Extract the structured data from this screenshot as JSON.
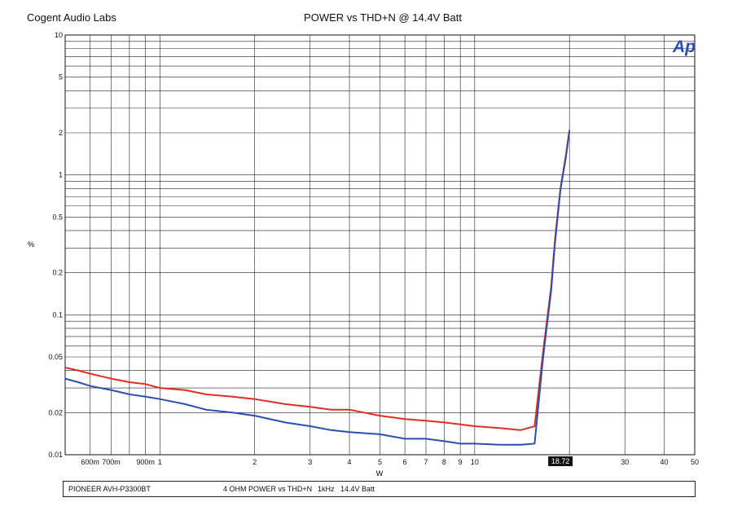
{
  "header": {
    "company": "Cogent Audio Labs",
    "title": "POWER vs THD+N @ 14.4V Batt"
  },
  "logo": {
    "text": "Ap",
    "color": "#2a4fb0"
  },
  "footer": {
    "device": "PIONEER AVH-P3300BT",
    "test": "4 OHM  POWER vs THD+N",
    "freq": "1kHz",
    "supply": "14.4V Batt"
  },
  "chart_data": {
    "type": "line",
    "xlabel": "W",
    "ylabel": "%",
    "xscale": "log",
    "yscale": "log",
    "xlim": [
      0.5,
      50
    ],
    "ylim": [
      0.01,
      10
    ],
    "grid": true,
    "marker": {
      "label": "18.72",
      "x": 18.72
    },
    "x_ticks": [
      {
        "v": 0.6,
        "label": "600m"
      },
      {
        "v": 0.7,
        "label": "700m"
      },
      {
        "v": 0.9,
        "label": "900m"
      },
      {
        "v": 1,
        "label": "1"
      },
      {
        "v": 2,
        "label": "2"
      },
      {
        "v": 3,
        "label": "3"
      },
      {
        "v": 4,
        "label": "4"
      },
      {
        "v": 5,
        "label": "5"
      },
      {
        "v": 6,
        "label": "6"
      },
      {
        "v": 7,
        "label": "7"
      },
      {
        "v": 8,
        "label": "8"
      },
      {
        "v": 9,
        "label": "9"
      },
      {
        "v": 10,
        "label": "10"
      },
      {
        "v": 30,
        "label": "30"
      },
      {
        "v": 40,
        "label": "40"
      },
      {
        "v": 50,
        "label": "50"
      }
    ],
    "y_ticks": [
      {
        "v": 10,
        "label": "10"
      },
      {
        "v": 5,
        "label": "5"
      },
      {
        "v": 2,
        "label": "2"
      },
      {
        "v": 1,
        "label": "1"
      },
      {
        "v": 0.5,
        "label": "0.5"
      },
      {
        "v": 0.2,
        "label": "0.2"
      },
      {
        "v": 0.1,
        "label": "0.1"
      },
      {
        "v": 0.05,
        "label": "0.05"
      },
      {
        "v": 0.02,
        "label": "0.02"
      },
      {
        "v": 0.01,
        "label": "0.01"
      }
    ],
    "series": [
      {
        "color": "#e03020",
        "x": [
          0.5,
          0.55,
          0.6,
          0.7,
          0.8,
          0.9,
          1.0,
          1.2,
          1.4,
          1.7,
          2.0,
          2.5,
          3.0,
          3.5,
          4.0,
          5.0,
          6.0,
          7.0,
          8.0,
          9.0,
          10.0,
          12.0,
          14.0,
          15.5,
          16.5,
          17.5,
          18.0,
          18.72,
          19.5,
          20.0
        ],
        "values": [
          0.042,
          0.04,
          0.038,
          0.035,
          0.033,
          0.032,
          0.03,
          0.029,
          0.027,
          0.026,
          0.025,
          0.023,
          0.022,
          0.021,
          0.021,
          0.019,
          0.018,
          0.0175,
          0.017,
          0.0165,
          0.016,
          0.0155,
          0.015,
          0.016,
          0.055,
          0.16,
          0.35,
          0.8,
          1.4,
          2.1
        ]
      },
      {
        "color": "#2a4fb0",
        "x": [
          0.5,
          0.55,
          0.6,
          0.7,
          0.8,
          0.9,
          1.0,
          1.2,
          1.4,
          1.7,
          2.0,
          2.5,
          3.0,
          3.5,
          4.0,
          5.0,
          6.0,
          7.0,
          8.0,
          9.0,
          10.0,
          12.0,
          14.0,
          15.5,
          16.5,
          17.5,
          18.0,
          18.72,
          19.5,
          20.0
        ],
        "values": [
          0.035,
          0.033,
          0.031,
          0.029,
          0.027,
          0.026,
          0.025,
          0.023,
          0.021,
          0.02,
          0.019,
          0.017,
          0.016,
          0.015,
          0.0145,
          0.014,
          0.013,
          0.013,
          0.0125,
          0.012,
          0.012,
          0.0118,
          0.0118,
          0.012,
          0.05,
          0.15,
          0.33,
          0.78,
          1.35,
          2.05
        ]
      }
    ]
  }
}
